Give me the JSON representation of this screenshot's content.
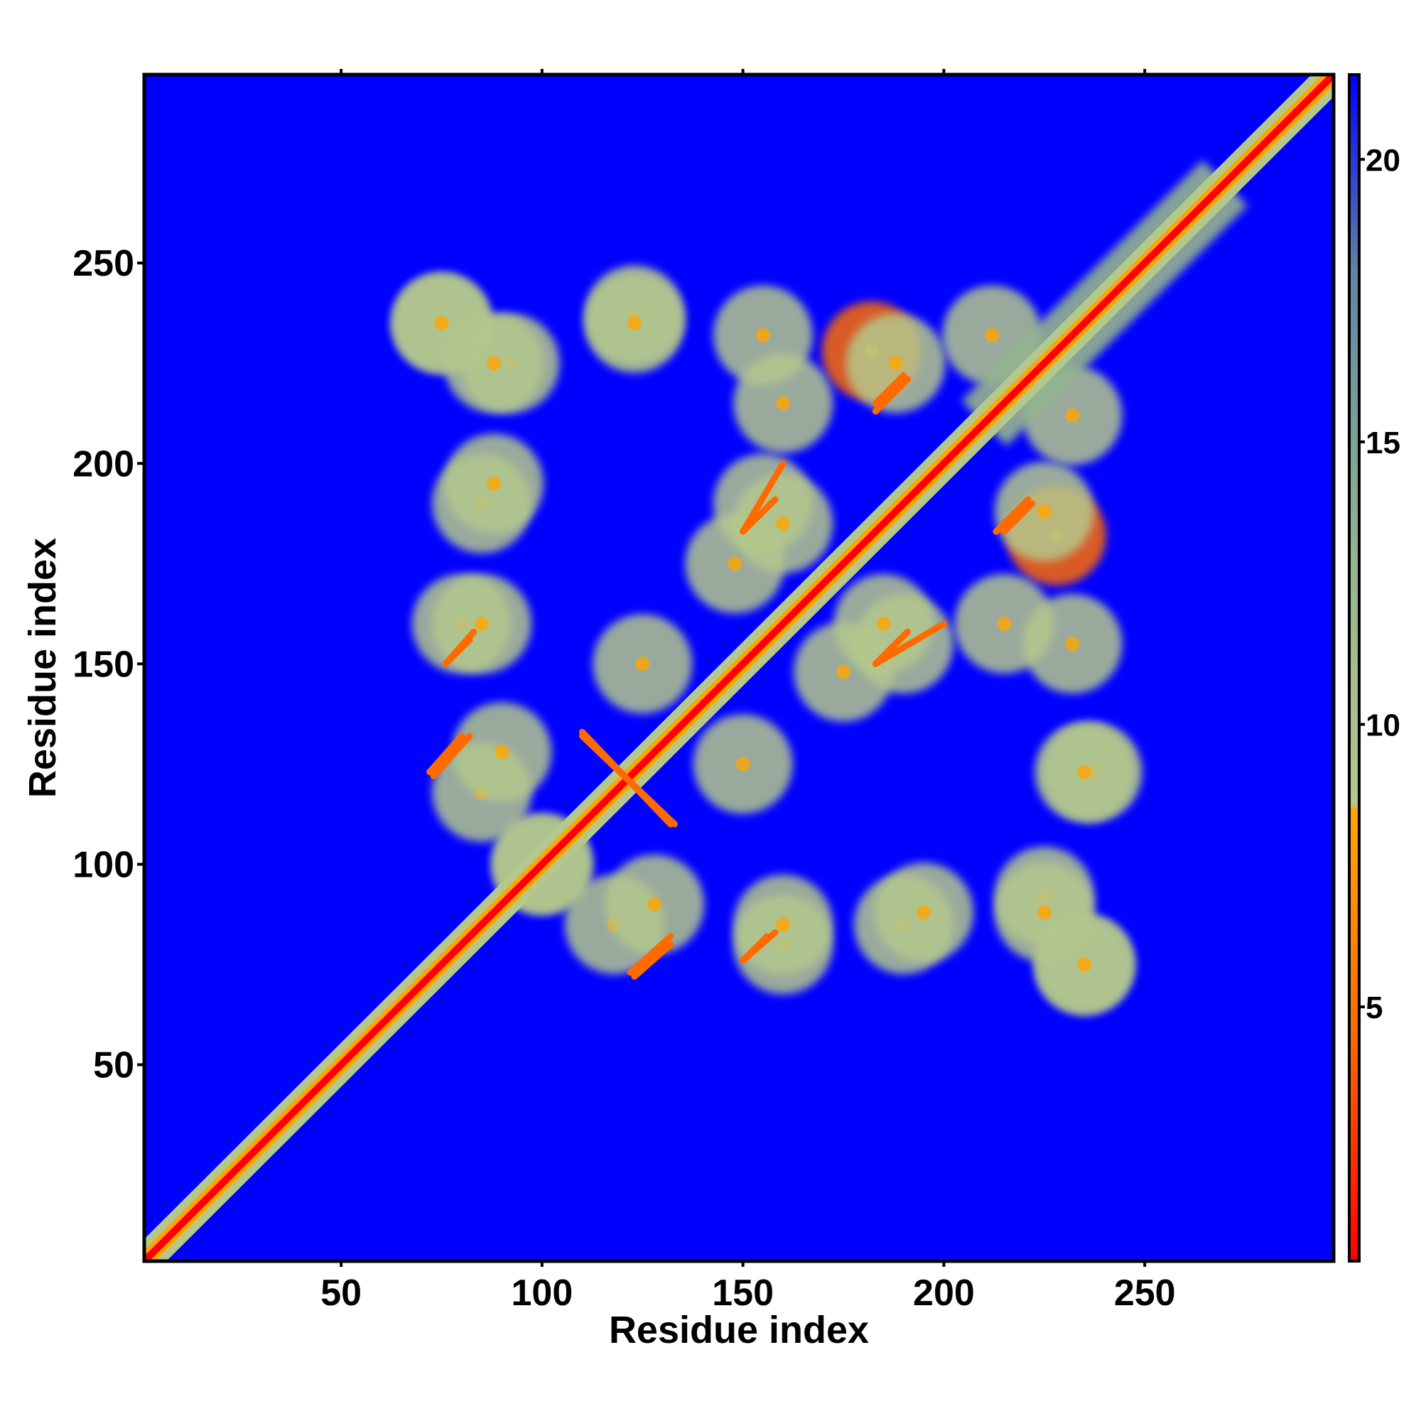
{
  "chart_data": {
    "type": "heatmap",
    "title": "",
    "xlabel": "Residue index",
    "ylabel": "Residue index",
    "xlim": [
      1,
      297
    ],
    "ylim": [
      1,
      297
    ],
    "x_ticks": [
      50,
      100,
      150,
      200,
      250
    ],
    "y_ticks": [
      50,
      100,
      150,
      200,
      250
    ],
    "colorbar": {
      "ticks": [
        5,
        10,
        15,
        20
      ],
      "range": [
        0.5,
        21.5
      ],
      "stops": [
        {
          "value": 0.5,
          "color": "#ff0000"
        },
        {
          "value": 4.5,
          "color": "#ff6a00"
        },
        {
          "value": 8.5,
          "color": "#ffa500"
        },
        {
          "value": 8.6,
          "color": "#b4c88c"
        },
        {
          "value": 13,
          "color": "#93b48f"
        },
        {
          "value": 18,
          "color": "#5f85a6"
        },
        {
          "value": 21.5,
          "color": "#0000ff"
        }
      ]
    },
    "background_color": "#0000ff",
    "diagonal_value": 1,
    "features": [
      {
        "x": 240,
        "y": 240,
        "value": 6,
        "kind": "diagonal-band",
        "extent": 60
      },
      {
        "x": 75,
        "y": 235,
        "value": 11,
        "kind": "contact-blob"
      },
      {
        "x": 92,
        "y": 225,
        "value": 10,
        "kind": "contact-blob"
      },
      {
        "x": 123,
        "y": 237,
        "value": 11,
        "kind": "contact-blob"
      },
      {
        "x": 155,
        "y": 232,
        "value": 10,
        "kind": "contact-blob"
      },
      {
        "x": 182,
        "y": 228,
        "value": 8,
        "kind": "contact-blob"
      },
      {
        "x": 212,
        "y": 232,
        "value": 9,
        "kind": "contact-blob"
      },
      {
        "x": 85,
        "y": 190,
        "value": 11,
        "kind": "contact-blob"
      },
      {
        "x": 155,
        "y": 190,
        "value": 9,
        "kind": "contact-blob"
      },
      {
        "x": 225,
        "y": 188,
        "value": 10,
        "kind": "contact-blob"
      },
      {
        "x": 80,
        "y": 160,
        "value": 10,
        "kind": "contact-blob"
      },
      {
        "x": 185,
        "y": 160,
        "value": 9,
        "kind": "contact-blob"
      },
      {
        "x": 215,
        "y": 160,
        "value": 10,
        "kind": "contact-blob"
      },
      {
        "x": 125,
        "y": 150,
        "value": 11,
        "kind": "contact-blob"
      },
      {
        "x": 175,
        "y": 148,
        "value": 10,
        "kind": "contact-blob"
      },
      {
        "x": 235,
        "y": 123,
        "value": 9,
        "kind": "contact-blob"
      },
      {
        "x": 85,
        "y": 118,
        "value": 11,
        "kind": "contact-blob"
      },
      {
        "x": 100,
        "y": 100,
        "value": 10,
        "kind": "contact-blob"
      },
      {
        "x": 128,
        "y": 90,
        "value": 11,
        "kind": "contact-blob"
      },
      {
        "x": 160,
        "y": 85,
        "value": 9,
        "kind": "contact-blob"
      },
      {
        "x": 195,
        "y": 88,
        "value": 10,
        "kind": "contact-blob"
      },
      {
        "x": 225,
        "y": 88,
        "value": 9,
        "kind": "contact-blob"
      },
      {
        "x": 235,
        "y": 75,
        "value": 11,
        "kind": "contact-blob"
      }
    ],
    "strands": [
      {
        "x1": 110,
        "y1": 133,
        "x2": 132,
        "y2": 110,
        "value": 7
      },
      {
        "x1": 72,
        "y1": 123,
        "x2": 80,
        "y2": 132,
        "value": 7
      },
      {
        "x1": 76,
        "y1": 150,
        "x2": 82,
        "y2": 156,
        "value": 7
      },
      {
        "x1": 122,
        "y1": 73,
        "x2": 132,
        "y2": 82,
        "value": 7
      },
      {
        "x1": 150,
        "y1": 76,
        "x2": 158,
        "y2": 83,
        "value": 7
      },
      {
        "x1": 150,
        "y1": 183,
        "x2": 158,
        "y2": 191,
        "value": 7
      },
      {
        "x1": 183,
        "y1": 150,
        "x2": 200,
        "y2": 160,
        "value": 7
      },
      {
        "x1": 183,
        "y1": 215,
        "x2": 190,
        "y2": 222,
        "value": 7
      },
      {
        "x1": 213,
        "y1": 183,
        "x2": 221,
        "y2": 191,
        "value": 7
      }
    ]
  }
}
